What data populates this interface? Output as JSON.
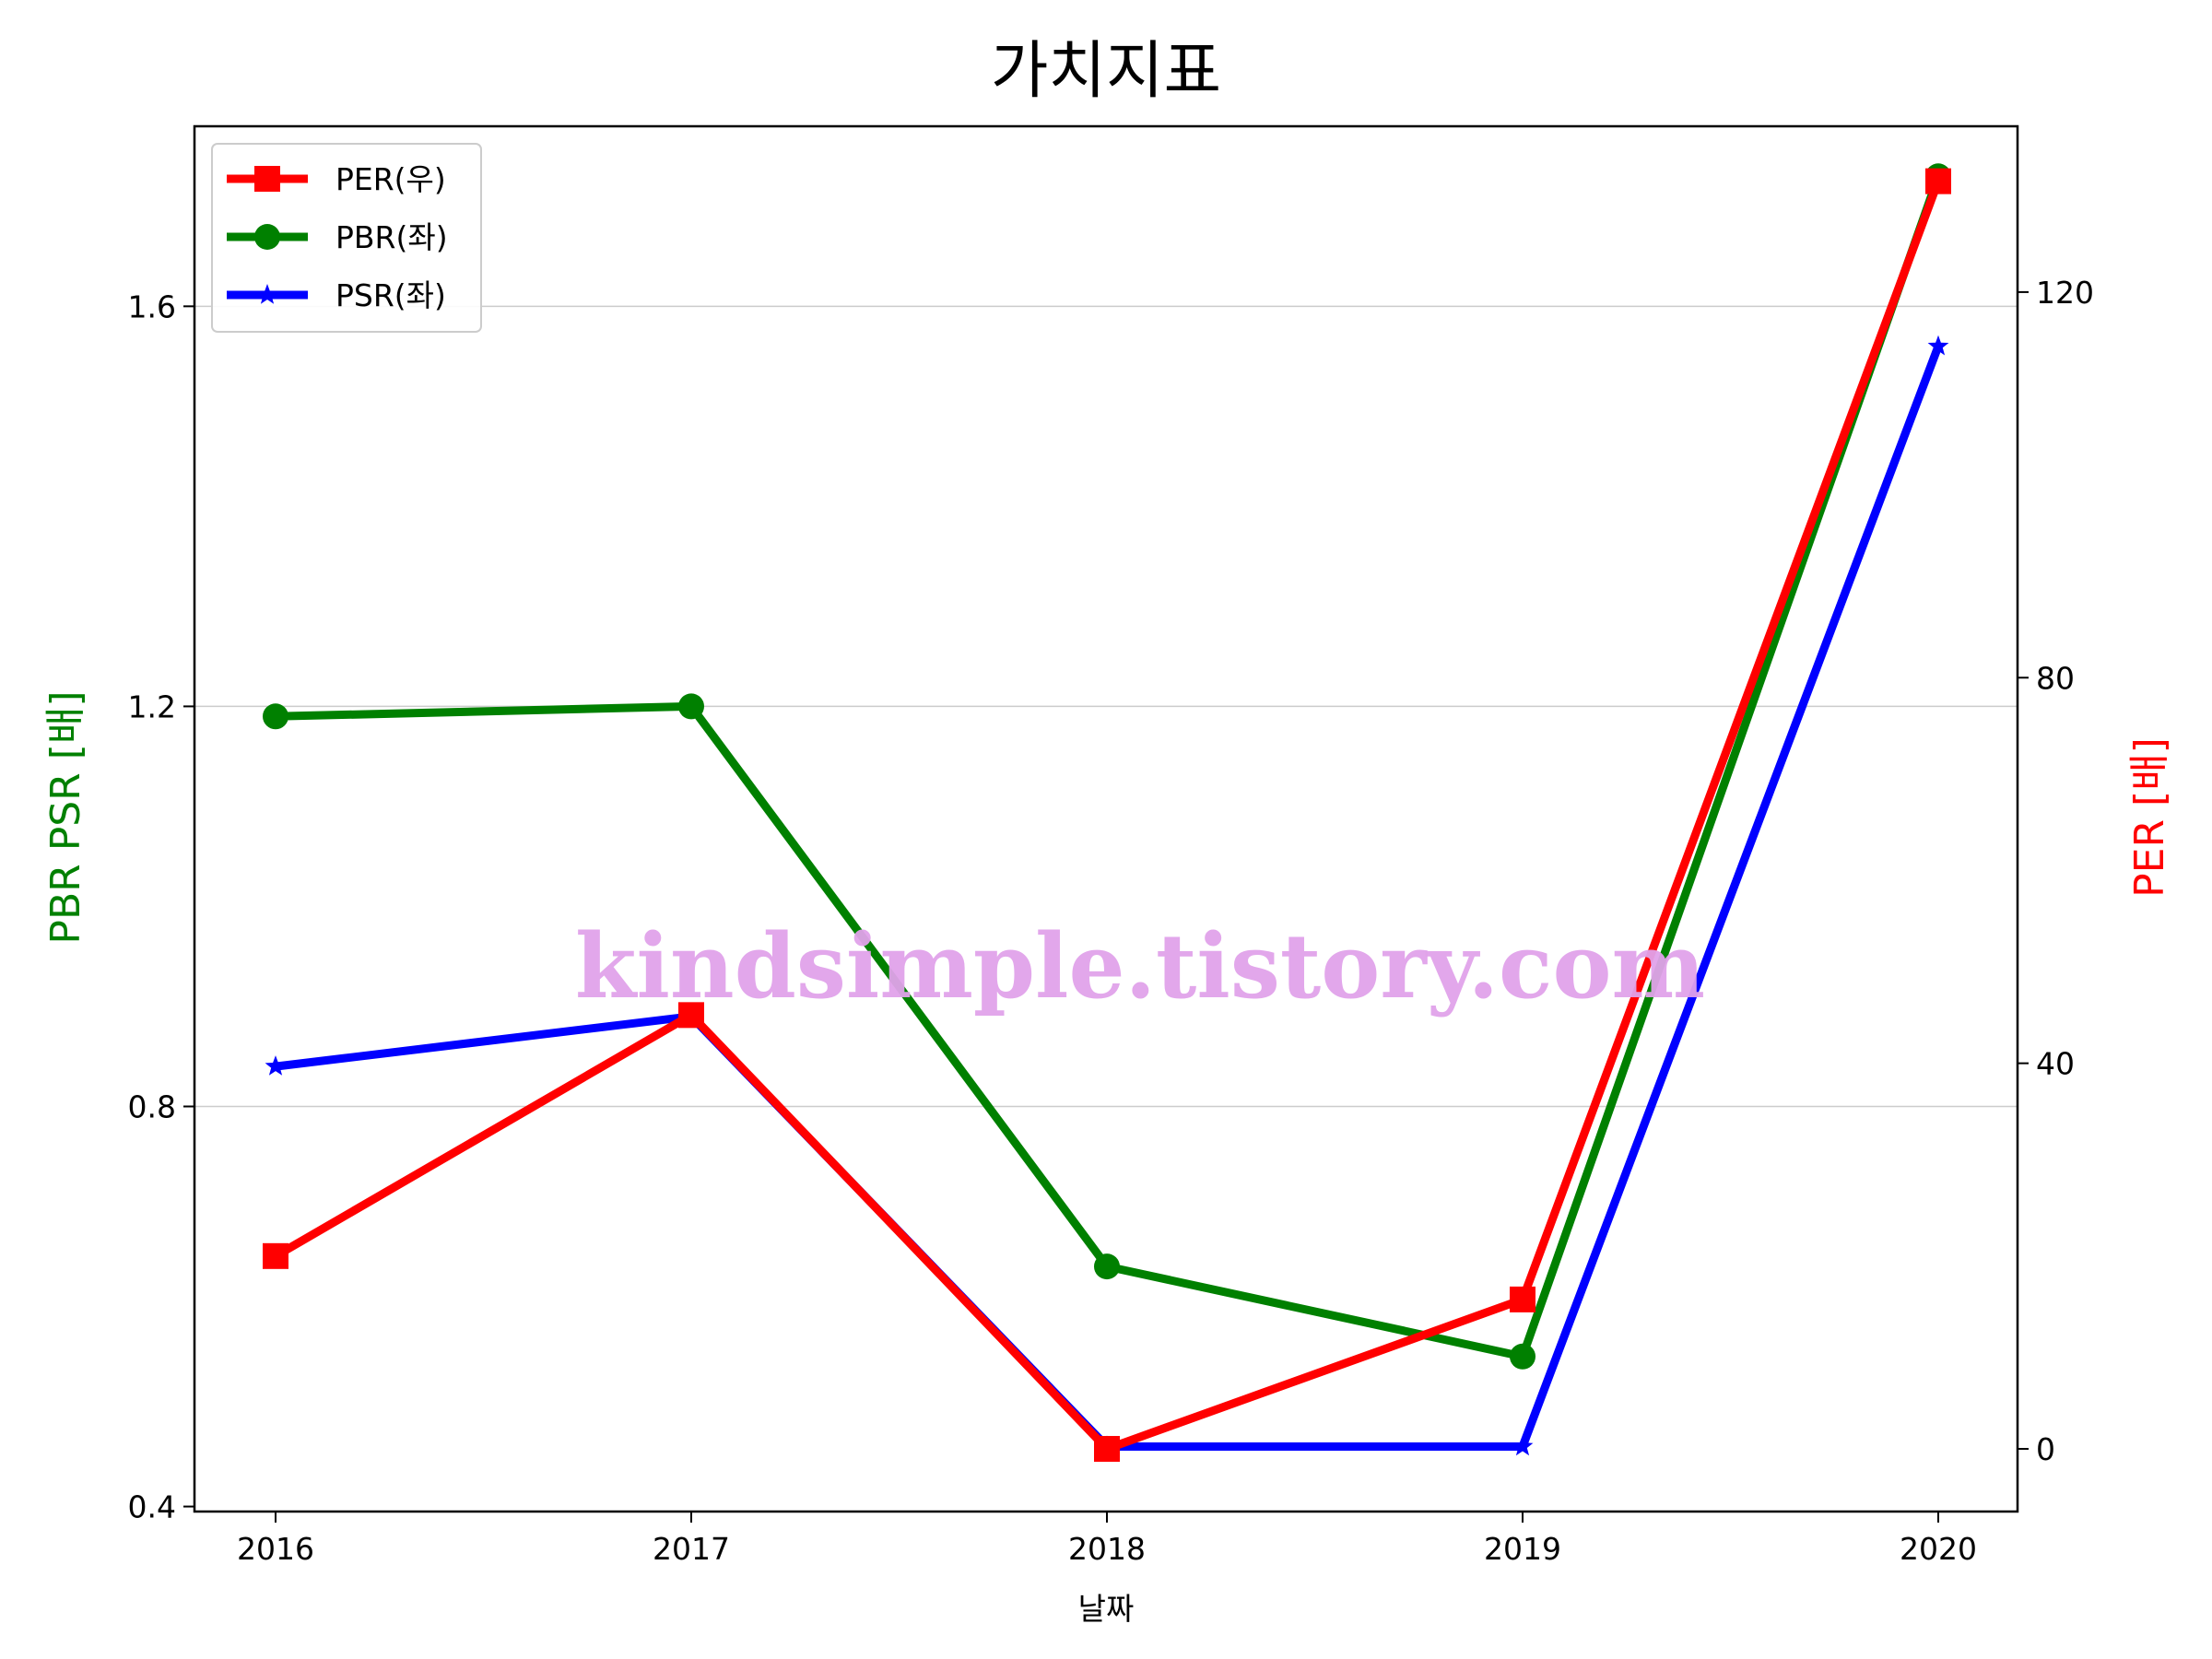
{
  "chart_data": {
    "type": "line",
    "title": "가치지표",
    "xlabel": "날짜",
    "ylabel_left": "PBR PSR [배]",
    "ylabel_right": "PER [배]",
    "categories": [
      "2016",
      "2017",
      "2018",
      "2019",
      "2020"
    ],
    "y_left": {
      "ticks": [
        "0.4",
        "0.8",
        "1.2",
        "1.6"
      ],
      "range": [
        0.395,
        1.78
      ]
    },
    "y_right": {
      "ticks": [
        "0",
        "40",
        "80",
        "120"
      ],
      "range": [
        -6.5,
        137.2
      ]
    },
    "series": [
      {
        "name": "PER(우)",
        "axis": "right",
        "color": "#ff0000",
        "marker": "square",
        "values": [
          20.0,
          45.0,
          0.0,
          15.5,
          131.5
        ]
      },
      {
        "name": "PBR(좌)",
        "axis": "left",
        "color": "#008000",
        "marker": "circle",
        "values": [
          1.19,
          1.2,
          0.64,
          0.55,
          1.73
        ]
      },
      {
        "name": "PSR(좌)",
        "axis": "left",
        "color": "#0000ff",
        "marker": "star",
        "values": [
          0.84,
          0.89,
          0.46,
          0.46,
          1.56
        ]
      }
    ],
    "grid": "horizontal",
    "legend_position": "top-left",
    "watermark": "kindsimple.tistory.com",
    "watermark_color": "#e0a2ea"
  }
}
